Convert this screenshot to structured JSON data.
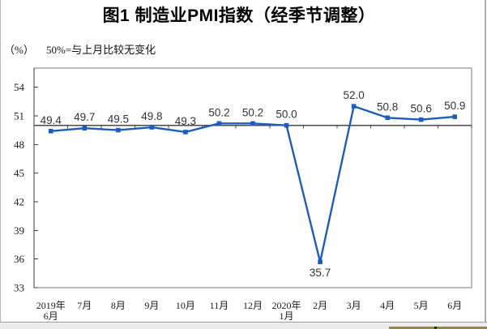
{
  "window": {
    "kind": "embedded-chart-image"
  },
  "chart_data": {
    "type": "line",
    "title": "图1 制造业PMI指数（经季节调整）",
    "ylabel": "（%）",
    "annotation": "50%=与上月比较无变化",
    "categories": [
      [
        "2019年",
        "6月"
      ],
      [
        "7月"
      ],
      [
        "8月"
      ],
      [
        "9月"
      ],
      [
        "10月"
      ],
      [
        "11月"
      ],
      [
        "12月"
      ],
      [
        "2020年",
        "1月"
      ],
      [
        "2月"
      ],
      [
        "3月"
      ],
      [
        "4月"
      ],
      [
        "5月"
      ],
      [
        "6月"
      ]
    ],
    "values": [
      49.4,
      49.7,
      49.5,
      49.8,
      49.3,
      50.2,
      50.2,
      50.0,
      35.7,
      52.0,
      50.8,
      50.6,
      50.9
    ],
    "data_labels": [
      "49.4",
      "49.7",
      "49.5",
      "49.8",
      "49.3",
      "50.2",
      "50.2",
      "50.0",
      "35.7",
      "52.0",
      "50.8",
      "50.6",
      "50.9"
    ],
    "label_positions": [
      "above",
      "above",
      "above",
      "above",
      "above",
      "above",
      "above",
      "above",
      "below",
      "above",
      "above",
      "above",
      "above"
    ],
    "yticks": [
      33,
      36,
      39,
      42,
      45,
      48,
      51,
      54
    ],
    "ylim": [
      33,
      56
    ],
    "reference_line": 50,
    "grid": false,
    "legend": null,
    "colors": {
      "series_line": "#1c5dbd",
      "marker": "#1c5dbd",
      "reference_line": "#4a4a4a",
      "plot_border": "#7a7a7a",
      "axis": "#3c3c3c",
      "tick_label": "#1a1a1a",
      "data_label": "#333333",
      "title": "#000000"
    }
  }
}
